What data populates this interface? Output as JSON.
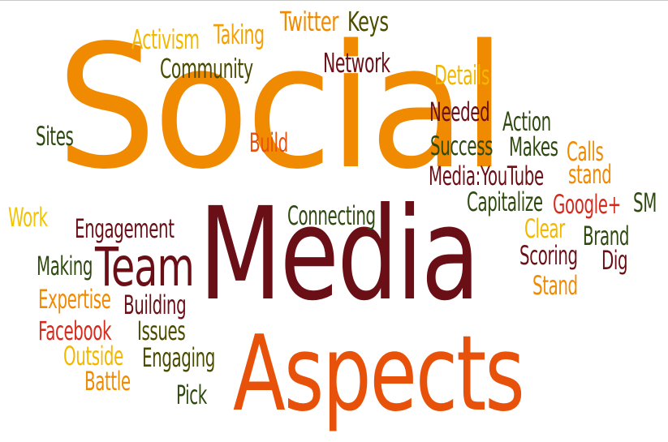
{
  "words": [
    {
      "text": "Social",
      "color": "#f08a00",
      "name": "word-social"
    },
    {
      "text": "Media",
      "color": "#6b0f16",
      "name": "word-media"
    },
    {
      "text": "Aspects",
      "color": "#e8510a",
      "name": "word-aspects"
    },
    {
      "text": "Team",
      "color": "#6b0f16",
      "name": "word-team"
    },
    {
      "text": "Twitter",
      "color": "#f08a00",
      "name": "word-twitter"
    },
    {
      "text": "Keys",
      "color": "#4b4b00",
      "name": "word-keys"
    },
    {
      "text": "Activism",
      "color": "#f2b800",
      "name": "word-activism"
    },
    {
      "text": "Taking",
      "color": "#f2a100",
      "name": "word-taking"
    },
    {
      "text": "Community",
      "color": "#4b4b00",
      "name": "word-community"
    },
    {
      "text": "Network",
      "color": "#6b0f16",
      "name": "word-network"
    },
    {
      "text": "Details",
      "color": "#f2b800",
      "name": "word-details"
    },
    {
      "text": "Needed",
      "color": "#6b0f16",
      "name": "word-needed"
    },
    {
      "text": "Action",
      "color": "#2f4a10",
      "name": "word-action"
    },
    {
      "text": "Sites",
      "color": "#2f4a10",
      "name": "word-sites"
    },
    {
      "text": "Build",
      "color": "#e8510a",
      "name": "word-build"
    },
    {
      "text": "Success",
      "color": "#2f4a10",
      "name": "word-success"
    },
    {
      "text": "Makes",
      "color": "#2f4a10",
      "name": "word-makes"
    },
    {
      "text": "Calls",
      "color": "#f08a00",
      "name": "word-calls"
    },
    {
      "text": "Media:YouTube",
      "color": "#6b0f16",
      "name": "word-media-youtube"
    },
    {
      "text": "stand",
      "color": "#f08a00",
      "name": "word-stand-lower"
    },
    {
      "text": "Capitalize",
      "color": "#2f4a10",
      "name": "word-capitalize"
    },
    {
      "text": "Google+",
      "color": "#d62a1c",
      "name": "word-google-plus"
    },
    {
      "text": "SM",
      "color": "#2f4a10",
      "name": "word-sm"
    },
    {
      "text": "Work",
      "color": "#f2c300",
      "name": "word-work"
    },
    {
      "text": "Engagement",
      "color": "#6b0f16",
      "name": "word-engagement"
    },
    {
      "text": "Connecting",
      "color": "#2f4a10",
      "name": "word-connecting"
    },
    {
      "text": "Clear",
      "color": "#f2b800",
      "name": "word-clear"
    },
    {
      "text": "Brand",
      "color": "#2f4a10",
      "name": "word-brand"
    },
    {
      "text": "Making",
      "color": "#2f4a10",
      "name": "word-making"
    },
    {
      "text": "Scoring",
      "color": "#6b0f16",
      "name": "word-scoring"
    },
    {
      "text": "Dig",
      "color": "#6b0f16",
      "name": "word-dig"
    },
    {
      "text": "Stand",
      "color": "#f08a00",
      "name": "word-stand"
    },
    {
      "text": "Expertise",
      "color": "#f08a00",
      "name": "word-expertise"
    },
    {
      "text": "Building",
      "color": "#6b0f16",
      "name": "word-building"
    },
    {
      "text": "Facebook",
      "color": "#d62a1c",
      "name": "word-facebook"
    },
    {
      "text": "Issues",
      "color": "#4b4b00",
      "name": "word-issues"
    },
    {
      "text": "Outside",
      "color": "#f2b800",
      "name": "word-outside"
    },
    {
      "text": "Engaging",
      "color": "#4b4b00",
      "name": "word-engaging"
    },
    {
      "text": "Battle",
      "color": "#f08a00",
      "name": "word-battle"
    },
    {
      "text": "Pick",
      "color": "#2f4a10",
      "name": "word-pick"
    }
  ]
}
